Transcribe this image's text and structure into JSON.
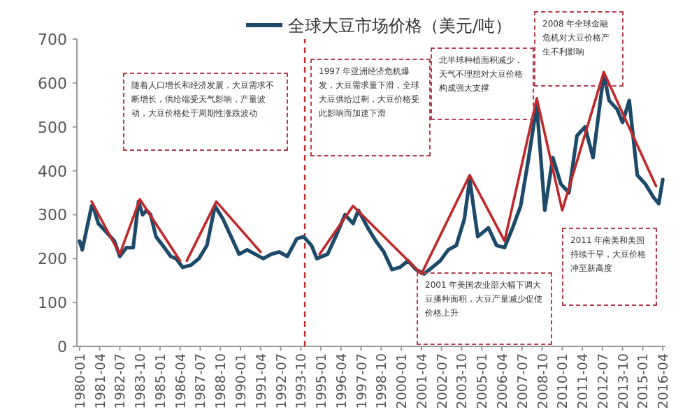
{
  "chart_data": {
    "type": "line",
    "legend": "top",
    "marker": "none",
    "line_style": "solid",
    "xlim": [
      "1979-11",
      "2016-06"
    ],
    "xticks": [
      "1980-01",
      "1981-04",
      "1982-07",
      "1983-10",
      "1985-01",
      "1986-04",
      "1987-07",
      "1988-10",
      "1990-01",
      "1991-04",
      "1992-07",
      "1993-10",
      "1995-01",
      "1996-04",
      "1997-07",
      "1998-10",
      "2000-01",
      "2001-04",
      "2002-07",
      "2003-10",
      "2005-01",
      "2006-04",
      "2007-07",
      "2008-10",
      "2010-01",
      "2011-04",
      "2012-07",
      "2013-10",
      "2015-01",
      "2016-04"
    ],
    "ylim": [
      0,
      700
    ],
    "yticks": [
      0,
      100,
      200,
      300,
      400,
      500,
      600,
      700
    ],
    "grid": false,
    "series": [
      {
        "name": "全球大豆市场价格（美元/吨）",
        "color": "#1b4a6b",
        "x": [
          "1980-01",
          "1980-03",
          "1980-10",
          "1980-12",
          "1981-03",
          "1981-09",
          "1982-03",
          "1982-07",
          "1982-12",
          "1983-05",
          "1983-09",
          "1983-12",
          "1984-03",
          "1984-06",
          "1984-10",
          "1985-03",
          "1985-09",
          "1986-01",
          "1986-06",
          "1986-12",
          "1987-06",
          "1987-12",
          "1988-06",
          "1988-08",
          "1988-12",
          "1989-06",
          "1989-12",
          "1990-06",
          "1990-12",
          "1991-06",
          "1991-12",
          "1992-06",
          "1992-12",
          "1993-07",
          "1993-12",
          "1994-06",
          "1994-10",
          "1995-06",
          "1995-12",
          "1996-07",
          "1997-01",
          "1997-05",
          "1997-12",
          "1998-06",
          "1998-12",
          "1999-06",
          "1999-12",
          "2000-06",
          "2000-12",
          "2001-06",
          "2001-10",
          "2002-06",
          "2002-12",
          "2003-06",
          "2003-12",
          "2004-04",
          "2004-10",
          "2005-06",
          "2005-12",
          "2006-06",
          "2006-12",
          "2007-06",
          "2007-12",
          "2008-06",
          "2008-12",
          "2009-06",
          "2009-12",
          "2010-06",
          "2010-12",
          "2011-06",
          "2011-12",
          "2012-08",
          "2012-12",
          "2013-06",
          "2013-10",
          "2014-03",
          "2014-09",
          "2015-03",
          "2015-09",
          "2016-01",
          "2016-04"
        ],
        "values": [
          240,
          220,
          320,
          310,
          280,
          260,
          240,
          205,
          225,
          225,
          330,
          300,
          310,
          300,
          250,
          230,
          205,
          200,
          180,
          185,
          200,
          230,
          320,
          310,
          290,
          250,
          210,
          220,
          210,
          200,
          210,
          215,
          205,
          245,
          250,
          230,
          200,
          210,
          250,
          300,
          280,
          310,
          270,
          240,
          215,
          175,
          180,
          195,
          175,
          165,
          175,
          195,
          220,
          230,
          290,
          380,
          250,
          270,
          230,
          225,
          270,
          320,
          430,
          550,
          310,
          430,
          370,
          350,
          480,
          500,
          430,
          620,
          560,
          540,
          510,
          560,
          390,
          370,
          340,
          325,
          380
        ]
      },
      {
        "color": "#c0282a",
        "x": [
          "1980-10",
          "1982-07",
          "1983-10",
          "1986-04",
          "1986-06",
          "1986-09",
          "1988-07",
          "1991-04",
          "1993-01",
          "1994-12",
          "1997-01",
          "2001-04",
          "2004-04",
          "2006-06",
          "2008-06",
          "2010-01",
          "2012-08",
          "2015-11"
        ],
        "values": [
          330,
          210,
          335,
          195,
          null,
          195,
          330,
          215,
          null,
          210,
          320,
          165,
          390,
          240,
          565,
          310,
          625,
          365
        ]
      }
    ],
    "ref_lines": [
      {
        "axis": "x",
        "value": "1994-01",
        "color": "#c0282a",
        "line_style": "dashed"
      }
    ],
    "annotations": [
      "随着人口增长和经济发展，大豆需求不断增长，供给端受天气影响，产量波动，大豆价格处于周期性涨跌波动",
      "1997 年亚洲经济危机爆发，大豆需求量下滑，全球大豆供给过剩，大豆价格受此影响而加速下滑",
      "北半球种植面积减少，天气不理想对大豆价格构成强大支撑",
      "2008 年全球金融危机对大豆价格产生不利影响",
      "2001 年美国农业部大幅下调大豆播种面积，大豆产量减少促使价格上升",
      "2011 年南美和美国持续干旱，大豆价格冲至新高度"
    ]
  }
}
